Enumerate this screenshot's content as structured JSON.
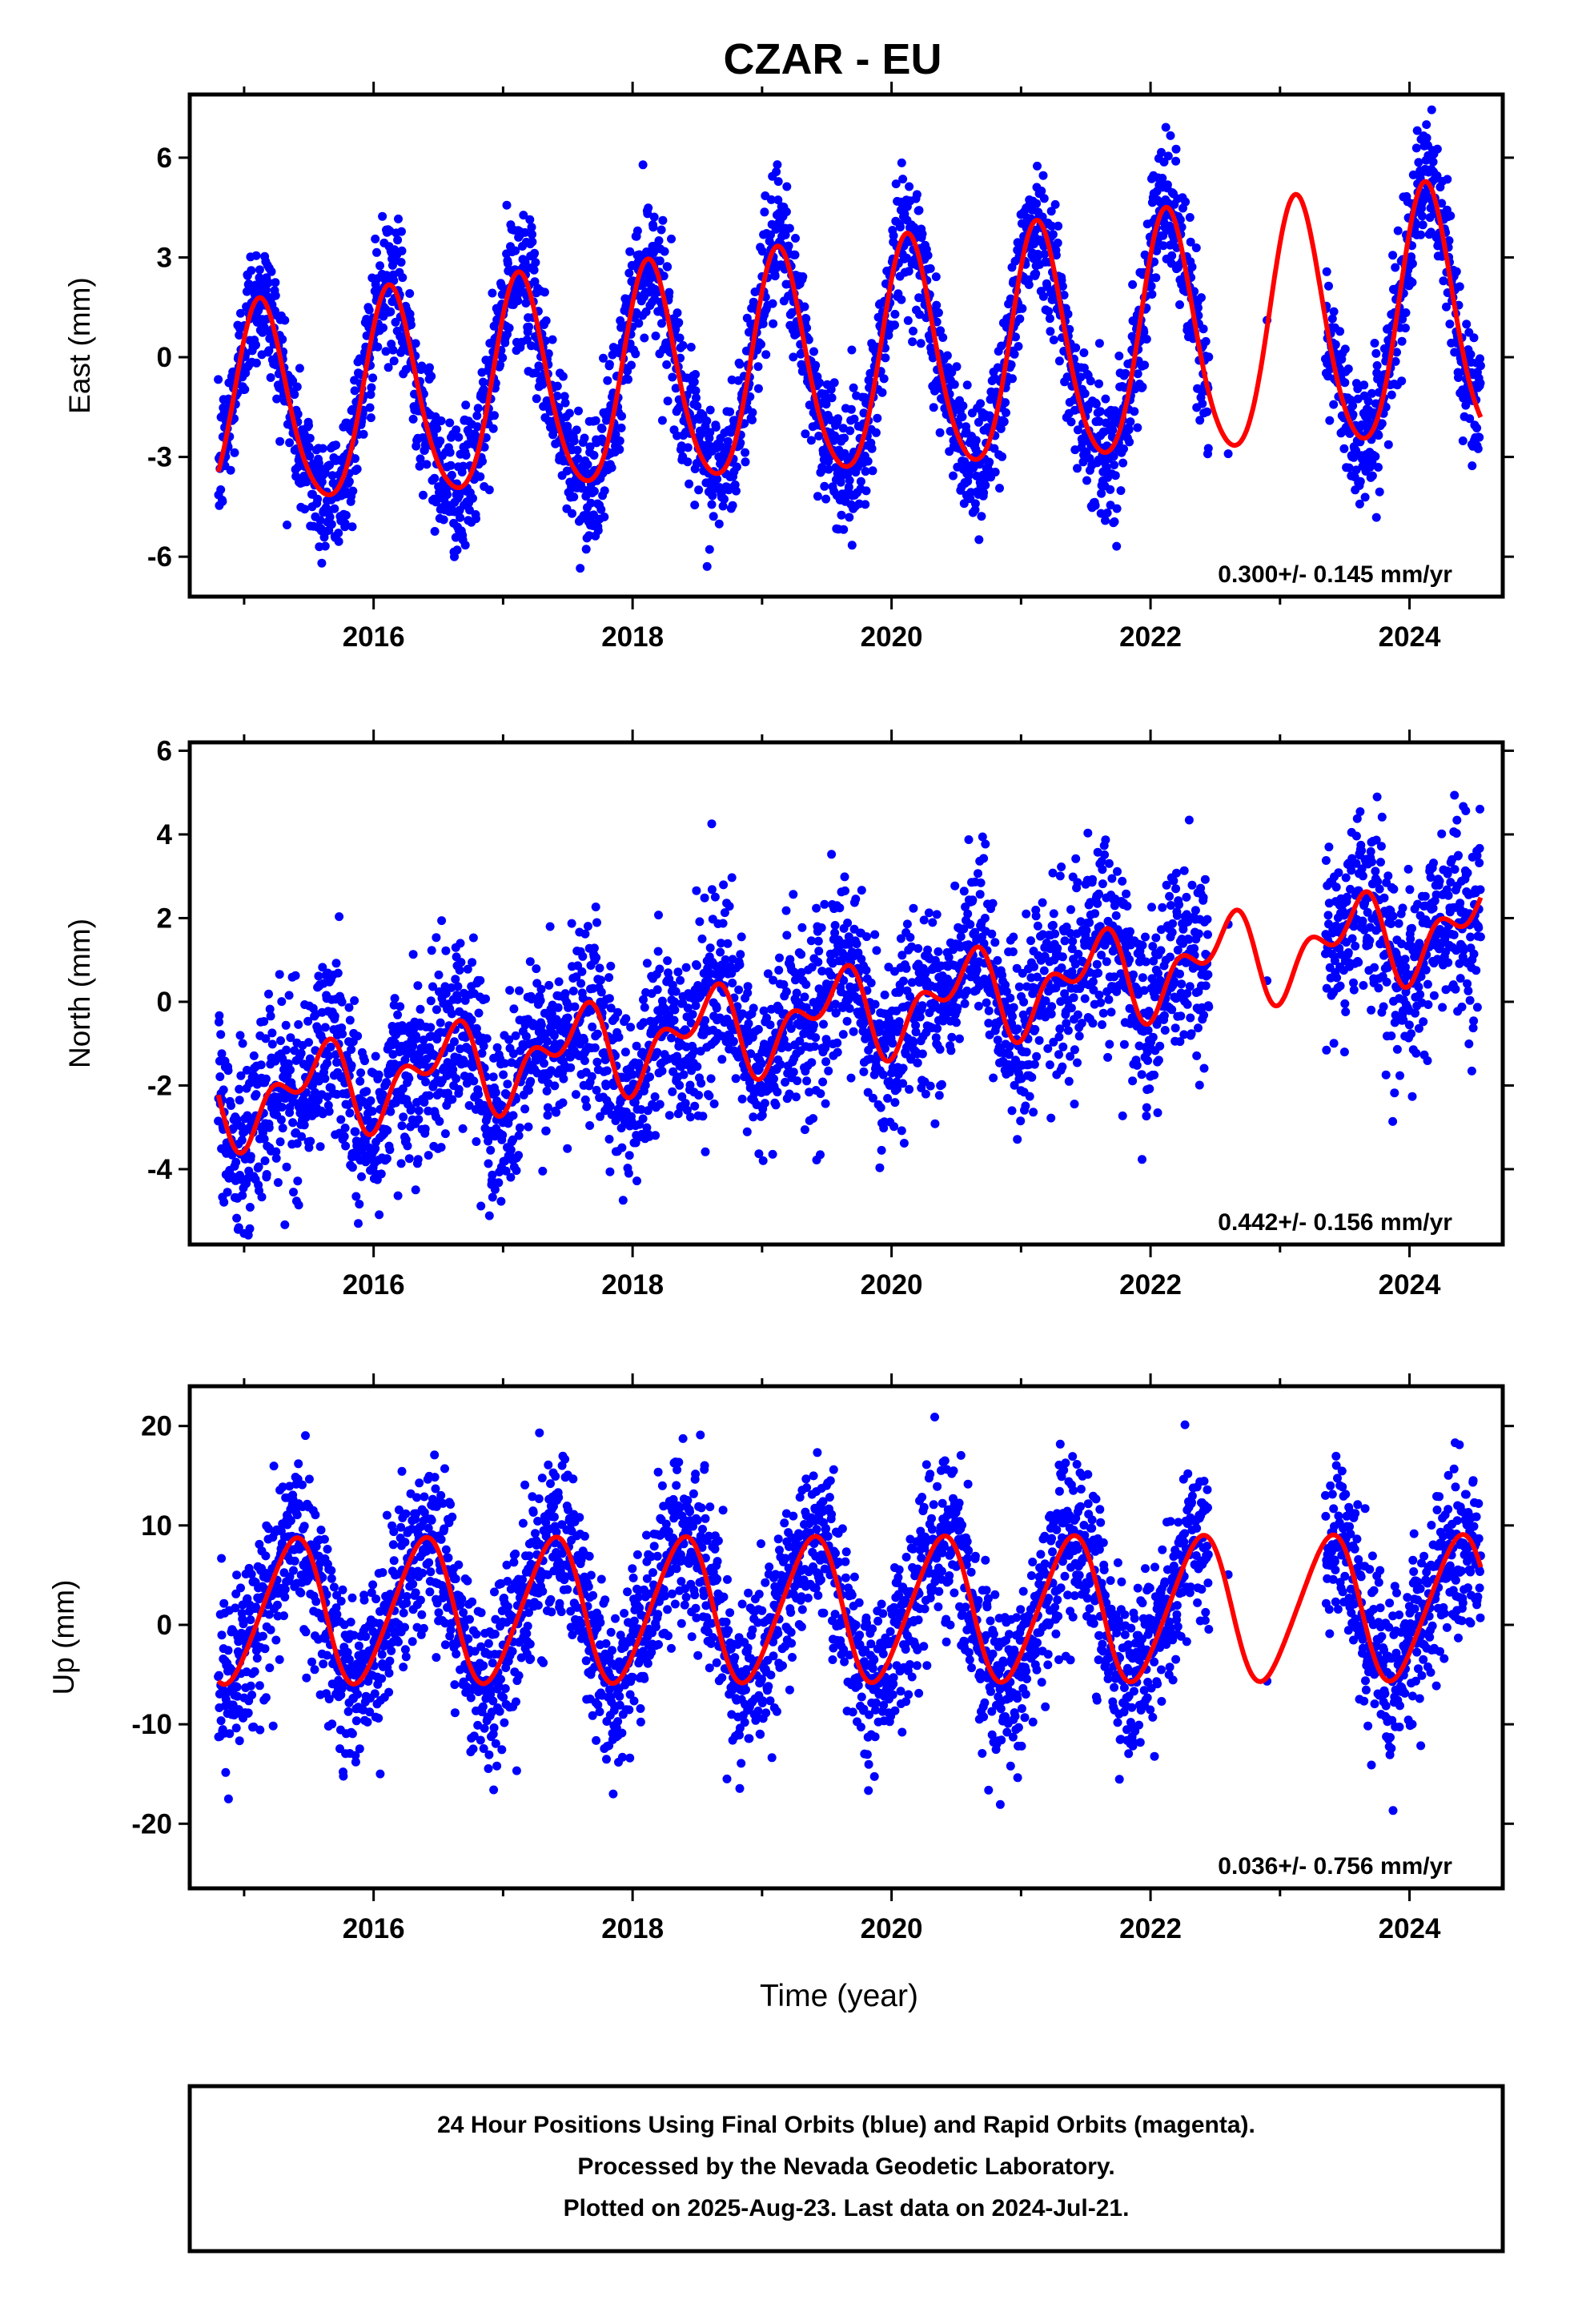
{
  "title": "CZAR - EU",
  "xlabel": "Time (year)",
  "footer": {
    "line1": "24 Hour Positions Using Final Orbits (blue) and Rapid Orbits (magenta).",
    "line2": "Processed by the Nevada Geodetic Laboratory.",
    "line3": "Plotted on 2025-Aug-23. Last data on 2024-Jul-21."
  },
  "colors": {
    "points": "#0000ff",
    "model": "#ff0000",
    "frame": "#000000"
  },
  "chart_data": [
    {
      "type": "scatter",
      "ylabel": "East (mm)",
      "rate_label": "0.300+/- 0.145 mm/yr",
      "xlim": [
        2014.58,
        2024.72
      ],
      "ylim": [
        -7.2,
        7.9
      ],
      "x_ticks": [
        "2016",
        "2018",
        "2020",
        "2022",
        "2024"
      ],
      "y_ticks": [
        "6",
        "3",
        "0",
        "-3",
        "-6"
      ],
      "y_tick_values": [
        6,
        3,
        0,
        -3,
        -6
      ],
      "series": [
        {
          "kind": "observations",
          "color": "#0000ff",
          "x_range": [
            2014.8,
            2024.55
          ],
          "data_gap": [
            2022.45,
            2023.35
          ]
        },
        {
          "kind": "model",
          "color": "#ff0000",
          "model": {
            "offset": -0.25,
            "trend": 0.3,
            "t0": 2019.6,
            "annual_amplitude": 3.4,
            "annual_phase": 0.13,
            "semiannual_amplitude": 0.4,
            "semiannual_phase": 0.1,
            "amplitude_growth": 0.13
          }
        }
      ]
    },
    {
      "type": "scatter",
      "ylabel": "North (mm)",
      "rate_label": "0.442+/- 0.156 mm/yr",
      "xlim": [
        2014.58,
        2024.72
      ],
      "ylim": [
        -5.8,
        6.2
      ],
      "x_ticks": [
        "2016",
        "2018",
        "2020",
        "2022",
        "2024"
      ],
      "y_ticks": [
        "6",
        "4",
        "2",
        "0",
        "-2",
        "-4"
      ],
      "y_tick_values": [
        6,
        4,
        2,
        0,
        -2,
        -4
      ],
      "series": [
        {
          "kind": "observations",
          "color": "#0000ff",
          "x_range": [
            2014.8,
            2024.55
          ],
          "data_gap": [
            2022.45,
            2023.35
          ]
        },
        {
          "kind": "model",
          "color": "#ff0000",
          "model": {
            "offset": -0.3,
            "trend": 0.44,
            "t0": 2019.6,
            "annual_amplitude": 0.8,
            "annual_phase": 0.55,
            "semiannual_amplitude": 0.6,
            "semiannual_phase": 0.2,
            "amplitude_growth": 0.0
          }
        }
      ]
    },
    {
      "type": "scatter",
      "ylabel": "Up (mm)",
      "rate_label": "0.036+/- 0.756 mm/yr",
      "xlim": [
        2014.58,
        2024.72
      ],
      "ylim": [
        -26.5,
        24
      ],
      "x_ticks": [
        "2016",
        "2018",
        "2020",
        "2022",
        "2024"
      ],
      "y_ticks": [
        "20",
        "10",
        "0",
        "-10",
        "-20"
      ],
      "y_tick_values": [
        20,
        10,
        0,
        -10,
        -20
      ],
      "series": [
        {
          "kind": "observations",
          "color": "#0000ff",
          "x_range": [
            2014.8,
            2024.55
          ],
          "data_gap": [
            2022.45,
            2023.35
          ]
        },
        {
          "kind": "model",
          "color": "#ff0000",
          "model": {
            "offset": 1.5,
            "trend": 0.036,
            "t0": 2019.6,
            "annual_amplitude": 7.2,
            "annual_phase": 0.38,
            "semiannual_amplitude": 0.8,
            "semiannual_phase": 0.0,
            "amplitude_growth": 0.0
          }
        }
      ]
    }
  ]
}
